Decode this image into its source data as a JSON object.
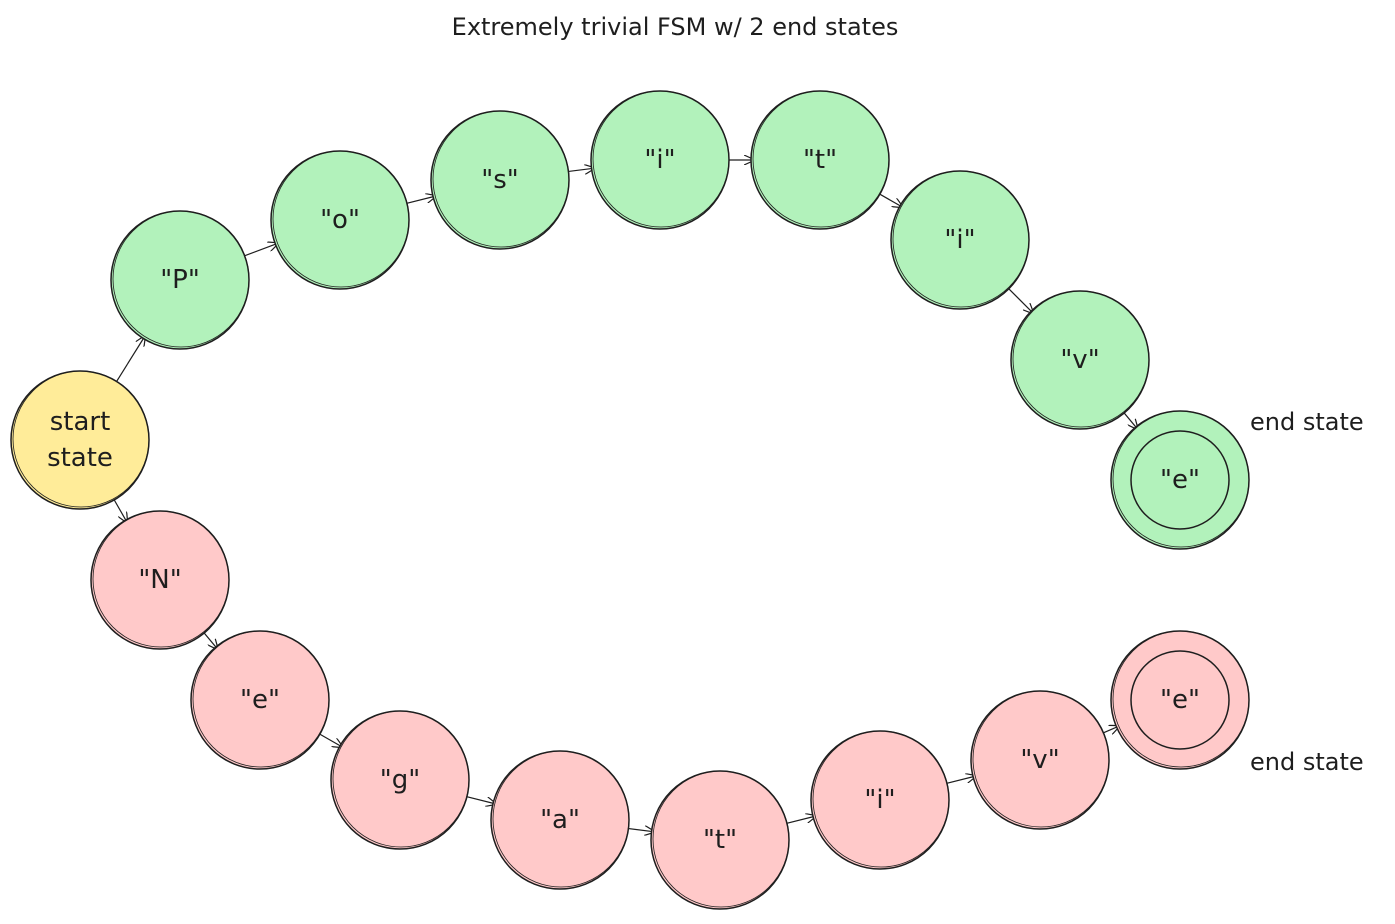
{
  "title": "Extremely trivial FSM w/ 2 end states",
  "colors": {
    "start": "#ffec99",
    "positive": "#b2f2bb",
    "negative": "#ffc9c9",
    "stroke": "#1e1e1e"
  },
  "start_state": {
    "label_line1": "start",
    "label_line2": "state"
  },
  "positive_path": [
    "\"P\"",
    "\"o\"",
    "\"s\"",
    "\"i\"",
    "\"t\"",
    "\"i\"",
    "\"v\"",
    "\"e\""
  ],
  "negative_path": [
    "\"N\"",
    "\"e\"",
    "\"g\"",
    "\"a\"",
    "\"t\"",
    "\"i\"",
    "\"v\"",
    "\"e\""
  ],
  "end_labels": {
    "positive": "end state",
    "negative": "end state"
  }
}
